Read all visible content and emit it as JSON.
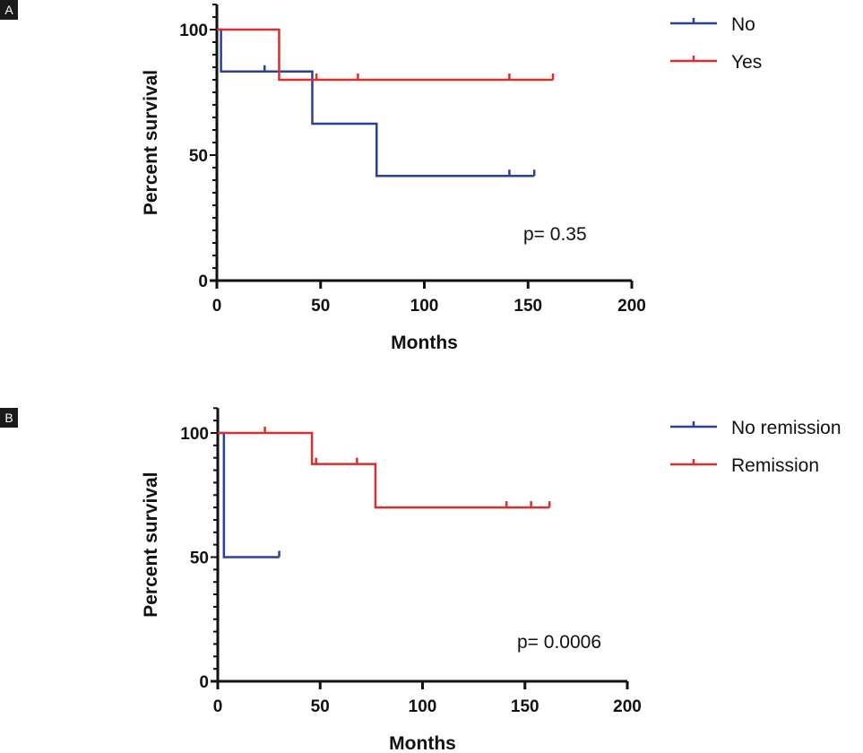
{
  "chart_data": [
    {
      "type": "line",
      "subtype": "kaplan-meier",
      "panel_label": "A",
      "xlabel": "Months",
      "ylabel": "Percent survival",
      "xlim": [
        0,
        200
      ],
      "ylim": [
        0,
        110
      ],
      "xticks": [
        0,
        50,
        100,
        150,
        200
      ],
      "yticks": [
        0,
        50,
        100
      ],
      "annotation": "p= 0.35",
      "legend_position": "top-right",
      "series": [
        {
          "name": "No",
          "color": "#2b3f9e",
          "steps": [
            [
              0,
              100
            ],
            [
              2,
              83.3
            ],
            [
              46,
              62.5
            ],
            [
              77,
              41.7
            ],
            [
              153,
              41.7
            ]
          ],
          "censored": [
            23,
            141,
            153
          ]
        },
        {
          "name": "Yes",
          "color": "#d9302c",
          "steps": [
            [
              0,
              100
            ],
            [
              30,
              80
            ],
            [
              162,
              80
            ]
          ],
          "censored": [
            48,
            68,
            141,
            162
          ]
        }
      ]
    },
    {
      "type": "line",
      "subtype": "kaplan-meier",
      "panel_label": "B",
      "xlabel": "Months",
      "ylabel": "Percent survival",
      "xlim": [
        0,
        200
      ],
      "ylim": [
        0,
        110
      ],
      "xticks": [
        0,
        50,
        100,
        150,
        200
      ],
      "yticks": [
        0,
        50,
        100
      ],
      "annotation": "p= 0.0006",
      "legend_position": "top-right",
      "series": [
        {
          "name": "No remission",
          "color": "#2b3f9e",
          "steps": [
            [
              0,
              100
            ],
            [
              3,
              50
            ],
            [
              30,
              50
            ]
          ],
          "censored": [
            30
          ]
        },
        {
          "name": "Remission",
          "color": "#d9302c",
          "steps": [
            [
              0,
              100
            ],
            [
              46,
              87.5
            ],
            [
              77,
              70
            ],
            [
              162,
              70
            ]
          ],
          "censored": [
            23,
            48,
            68,
            141,
            153,
            162
          ]
        }
      ]
    }
  ]
}
